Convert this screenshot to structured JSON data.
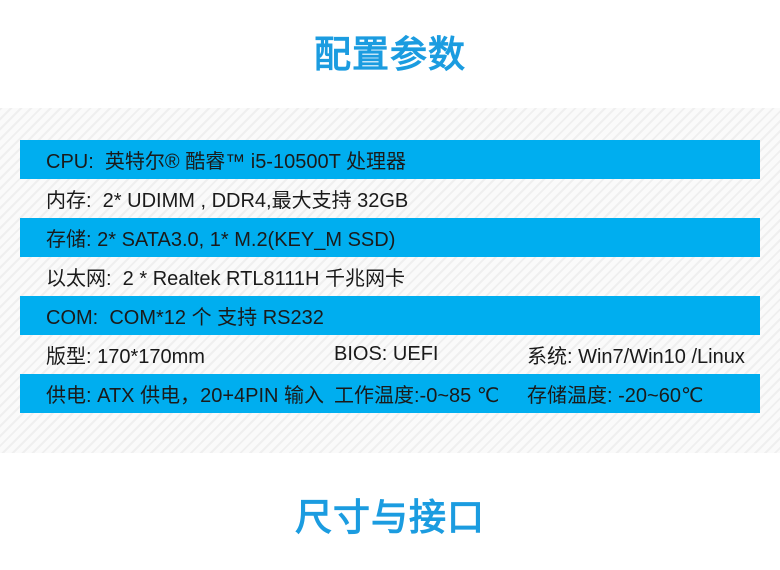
{
  "titles": {
    "config": "配置参数",
    "ports": "尺寸与接口"
  },
  "colors": {
    "accent_blue": "#1b9ce0",
    "row_blue": "#00aeef",
    "text": "#1a1a1a",
    "striped_bg": "#fafafa"
  },
  "spec_table": {
    "rows": [
      {
        "type": "blue",
        "cells": [
          "CPU:  英特尔® 酷睿™ i5-10500T 处理器"
        ]
      },
      {
        "type": "plain",
        "cells": [
          "内存:  2* UDIMM , DDR4,最大支持 32GB"
        ]
      },
      {
        "type": "blue",
        "cells": [
          "存储: 2* SATA3.0, 1* M.2(KEY_M SSD)"
        ]
      },
      {
        "type": "plain",
        "cells": [
          "以太网:  2 * Realtek RTL8111H 千兆网卡"
        ]
      },
      {
        "type": "blue",
        "cells": [
          "COM:  COM*12 个 支持 RS232"
        ]
      },
      {
        "type": "plain",
        "cells": [
          "版型: 170*170mm",
          "BIOS: UEFI",
          "系统: Win7/Win10 /Linux"
        ]
      },
      {
        "type": "blue",
        "cells": [
          "供电: ATX 供电，20+4PIN 输入",
          "工作温度:-0~85 ℃",
          "存储温度: -20~60℃"
        ]
      }
    ]
  }
}
